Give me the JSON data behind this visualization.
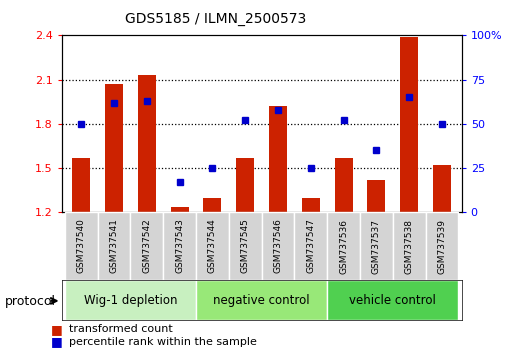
{
  "title": "GDS5185 / ILMN_2500573",
  "samples": [
    "GSM737540",
    "GSM737541",
    "GSM737542",
    "GSM737543",
    "GSM737544",
    "GSM737545",
    "GSM737546",
    "GSM737547",
    "GSM737536",
    "GSM737537",
    "GSM737538",
    "GSM737539"
  ],
  "red_bars": [
    1.57,
    2.07,
    2.13,
    1.24,
    1.3,
    1.57,
    1.92,
    1.3,
    1.57,
    1.42,
    2.39,
    1.52
  ],
  "blue_dots": [
    50,
    62,
    63,
    17,
    25,
    52,
    58,
    25,
    52,
    35,
    65,
    50
  ],
  "groups": [
    {
      "label": "Wig-1 depletion",
      "start": 0,
      "end": 3,
      "color": "#c8f0c0"
    },
    {
      "label": "negative control",
      "start": 4,
      "end": 7,
      "color": "#98e878"
    },
    {
      "label": "vehicle control",
      "start": 8,
      "end": 11,
      "color": "#50d050"
    }
  ],
  "ylim_left": [
    1.2,
    2.4
  ],
  "ylim_right": [
    0,
    100
  ],
  "yticks_left": [
    1.2,
    1.5,
    1.8,
    2.1,
    2.4
  ],
  "yticks_right": [
    0,
    25,
    50,
    75,
    100
  ],
  "ytick_labels_right": [
    "0",
    "25",
    "50",
    "75",
    "100%"
  ],
  "bar_color": "#cc2200",
  "dot_color": "#0000cc",
  "bar_width": 0.55,
  "protocol_label": "protocol"
}
